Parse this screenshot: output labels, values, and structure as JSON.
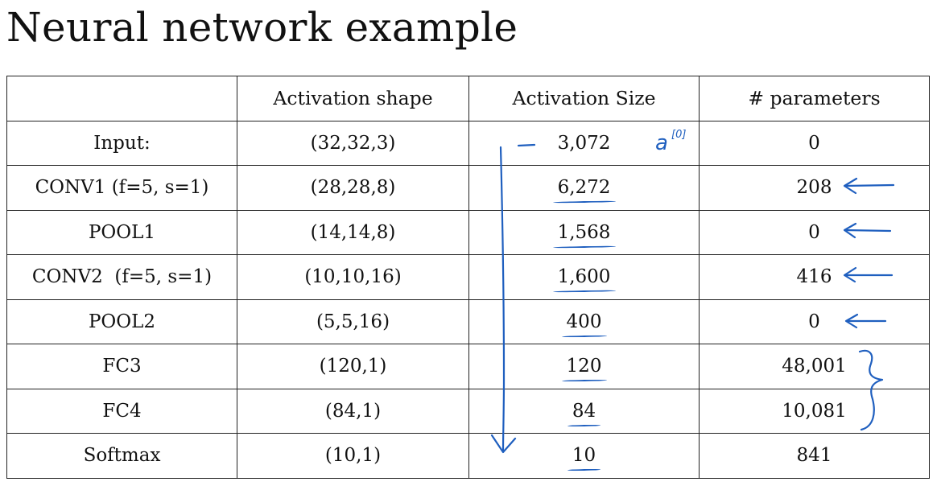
{
  "title": "Neural network example",
  "table": {
    "headers": [
      "",
      "Activation shape",
      "Activation Size",
      "# parameters"
    ],
    "rows": [
      {
        "layer": "Input:",
        "shape": "(32,32,3)",
        "size": "3,072",
        "params": "0"
      },
      {
        "layer": "CONV1 (f=5, s=1)",
        "shape": "(28,28,8)",
        "size": "6,272",
        "params": "208"
      },
      {
        "layer": "POOL1",
        "shape": "(14,14,8)",
        "size": "1,568",
        "params": "0"
      },
      {
        "layer": "CONV2  (f=5, s=1)",
        "shape": "(10,10,16)",
        "size": "1,600",
        "params": "416"
      },
      {
        "layer": "POOL2",
        "shape": "(5,5,16)",
        "size": "400",
        "params": "0"
      },
      {
        "layer": "FC3",
        "shape": "(120,1)",
        "size": "120",
        "params": "48,001"
      },
      {
        "layer": "FC4",
        "shape": "(84,1)",
        "size": "84",
        "params": "10,081"
      },
      {
        "layer": "Softmax",
        "shape": "(10,1)",
        "size": "10",
        "params": "841"
      }
    ]
  },
  "annotations": {
    "input_label": "a[0]",
    "ink_color": "#1f5fbf"
  }
}
